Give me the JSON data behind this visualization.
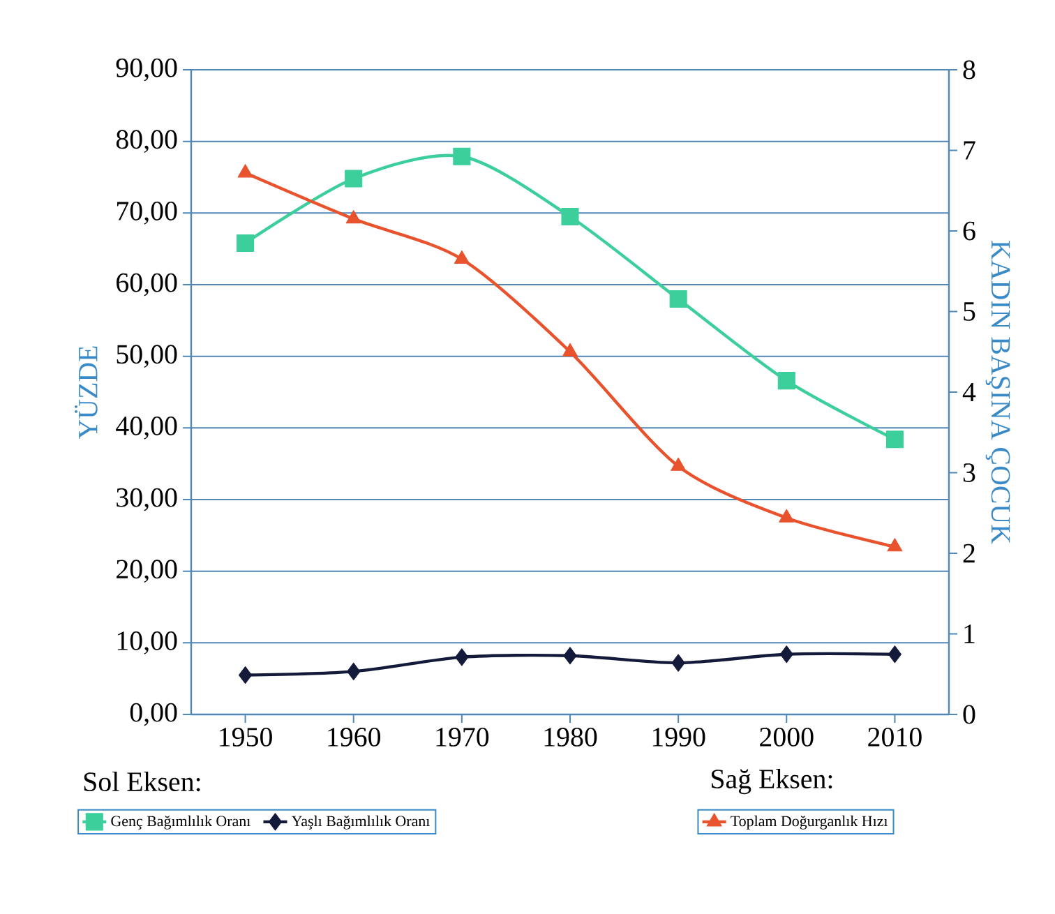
{
  "chart_data": {
    "type": "line",
    "ylabel": "YÜZDE",
    "y2label": "KADIN BAŞINA ÇOCUK",
    "x": [
      1950,
      1960,
      1970,
      1980,
      1990,
      2000,
      2010
    ],
    "xlim": [
      1945,
      2015
    ],
    "xticks": [
      1950,
      1960,
      1970,
      1980,
      1990,
      2000,
      2010
    ],
    "ylim": [
      0,
      90
    ],
    "yticks": [
      {
        "value": 0,
        "label": "0,00"
      },
      {
        "value": 10,
        "label": "10,00"
      },
      {
        "value": 20,
        "label": "20,00"
      },
      {
        "value": 30,
        "label": "30,00"
      },
      {
        "value": 40,
        "label": "40,00"
      },
      {
        "value": 50,
        "label": "50,00"
      },
      {
        "value": 60,
        "label": "60,00"
      },
      {
        "value": 70,
        "label": "70,00"
      },
      {
        "value": 80,
        "label": "80,00"
      },
      {
        "value": 90,
        "label": "90,00"
      }
    ],
    "y2lim": [
      0,
      8
    ],
    "y2ticks": [
      0,
      1,
      2,
      3,
      4,
      5,
      6,
      7,
      8
    ],
    "grid": "y",
    "legend": "bottom",
    "line_style": "solid",
    "annotations": [
      "Sol Eksen:",
      "Sağ Eksen:"
    ],
    "series": [
      {
        "name": "Genç Bağımlılık Oranı",
        "color": "#3ccf9c",
        "marker": "square",
        "values": [
          65.8,
          74.8,
          77.9,
          69.5,
          58.0,
          46.6,
          38.4
        ]
      },
      {
        "name": "Yaşlı Bağımlılık Oranı",
        "color": "#141a3a",
        "marker": "diamond",
        "values": [
          5.5,
          6.0,
          8.0,
          8.2,
          7.2,
          8.4,
          8.4
        ]
      },
      {
        "name": "Toplam Doğurganlık Hızı",
        "color": "#e8532e",
        "marker": "triangle",
        "axis": "y2",
        "values": [
          6.72,
          6.15,
          5.65,
          4.5,
          3.08,
          2.44,
          2.08
        ]
      }
    ]
  }
}
